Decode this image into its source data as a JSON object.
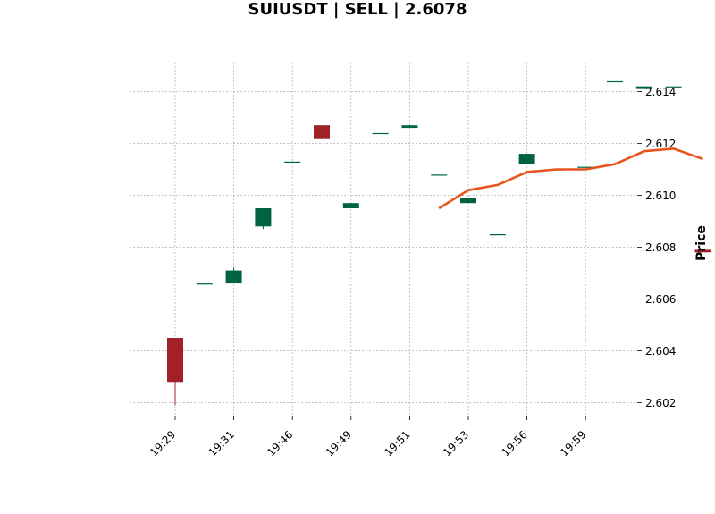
{
  "chart_data": {
    "type": "candlestick",
    "title": "SUIUSDT | SELL | 2.6078",
    "xlabel": "",
    "ylabel": "Price",
    "ylim": [
      2.6014,
      2.615
    ],
    "yticks": [
      2.602,
      2.604,
      2.606,
      2.608,
      2.61,
      2.612,
      2.614
    ],
    "ytick_labels": [
      "2.602",
      "2.604",
      "2.606",
      "2.608",
      "2.610",
      "2.612",
      "2.614"
    ],
    "xtick_indices": [
      0,
      2,
      4,
      6,
      8,
      10,
      12,
      14
    ],
    "xtick_labels": [
      "19:29",
      "19:31",
      "19:46",
      "19:49",
      "19:51",
      "19:53",
      "19:56",
      "19:59"
    ],
    "grid": true,
    "colors": {
      "up": "#006340",
      "down": "#a02128",
      "ma": "#e8541c",
      "grid": "#b0b0b0"
    },
    "candles": [
      {
        "o": 2.6045,
        "h": 2.6045,
        "l": 2.6019,
        "c": 2.6028
      },
      {
        "o": 2.6066,
        "h": 2.6066,
        "l": 2.6066,
        "c": 2.6066
      },
      {
        "o": 2.6066,
        "h": 2.6072,
        "l": 2.6066,
        "c": 2.6071
      },
      {
        "o": 2.6088,
        "h": 2.6095,
        "l": 2.6087,
        "c": 2.6095
      },
      {
        "o": 2.6113,
        "h": 2.6113,
        "l": 2.6113,
        "c": 2.6113
      },
      {
        "o": 2.6127,
        "h": 2.6127,
        "l": 2.6122,
        "c": 2.6122
      },
      {
        "o": 2.6095,
        "h": 2.6097,
        "l": 2.6095,
        "c": 2.6097
      },
      {
        "o": 2.6124,
        "h": 2.6124,
        "l": 2.6124,
        "c": 2.6124
      },
      {
        "o": 2.6126,
        "h": 2.6127,
        "l": 2.6126,
        "c": 2.6127
      },
      {
        "o": 2.6108,
        "h": 2.6108,
        "l": 2.6108,
        "c": 2.6108
      },
      {
        "o": 2.6097,
        "h": 2.6099,
        "l": 2.6097,
        "c": 2.6099
      },
      {
        "o": 2.6085,
        "h": 2.6085,
        "l": 2.6085,
        "c": 2.6085
      },
      {
        "o": 2.6112,
        "h": 2.6116,
        "l": 2.6112,
        "c": 2.6116
      },
      {
        "o": 2.611,
        "h": 2.611,
        "l": 2.611,
        "c": 2.611
      },
      {
        "o": 2.6111,
        "h": 2.6111,
        "l": 2.6111,
        "c": 2.6111
      },
      {
        "o": 2.6144,
        "h": 2.6144,
        "l": 2.6144,
        "c": 2.6144
      },
      {
        "o": 2.6141,
        "h": 2.6142,
        "l": 2.6141,
        "c": 2.6142
      },
      {
        "o": 2.6142,
        "h": 2.6142,
        "l": 2.6142,
        "c": 2.6142
      },
      {
        "o": 2.6079,
        "h": 2.6079,
        "l": 2.6078,
        "c": 2.6078
      }
    ],
    "moving_average": {
      "start_index": 9,
      "values": [
        2.6095,
        2.6102,
        2.6104,
        2.6109,
        2.611,
        2.611,
        2.6112,
        2.6117,
        2.6118,
        2.6114
      ]
    }
  }
}
